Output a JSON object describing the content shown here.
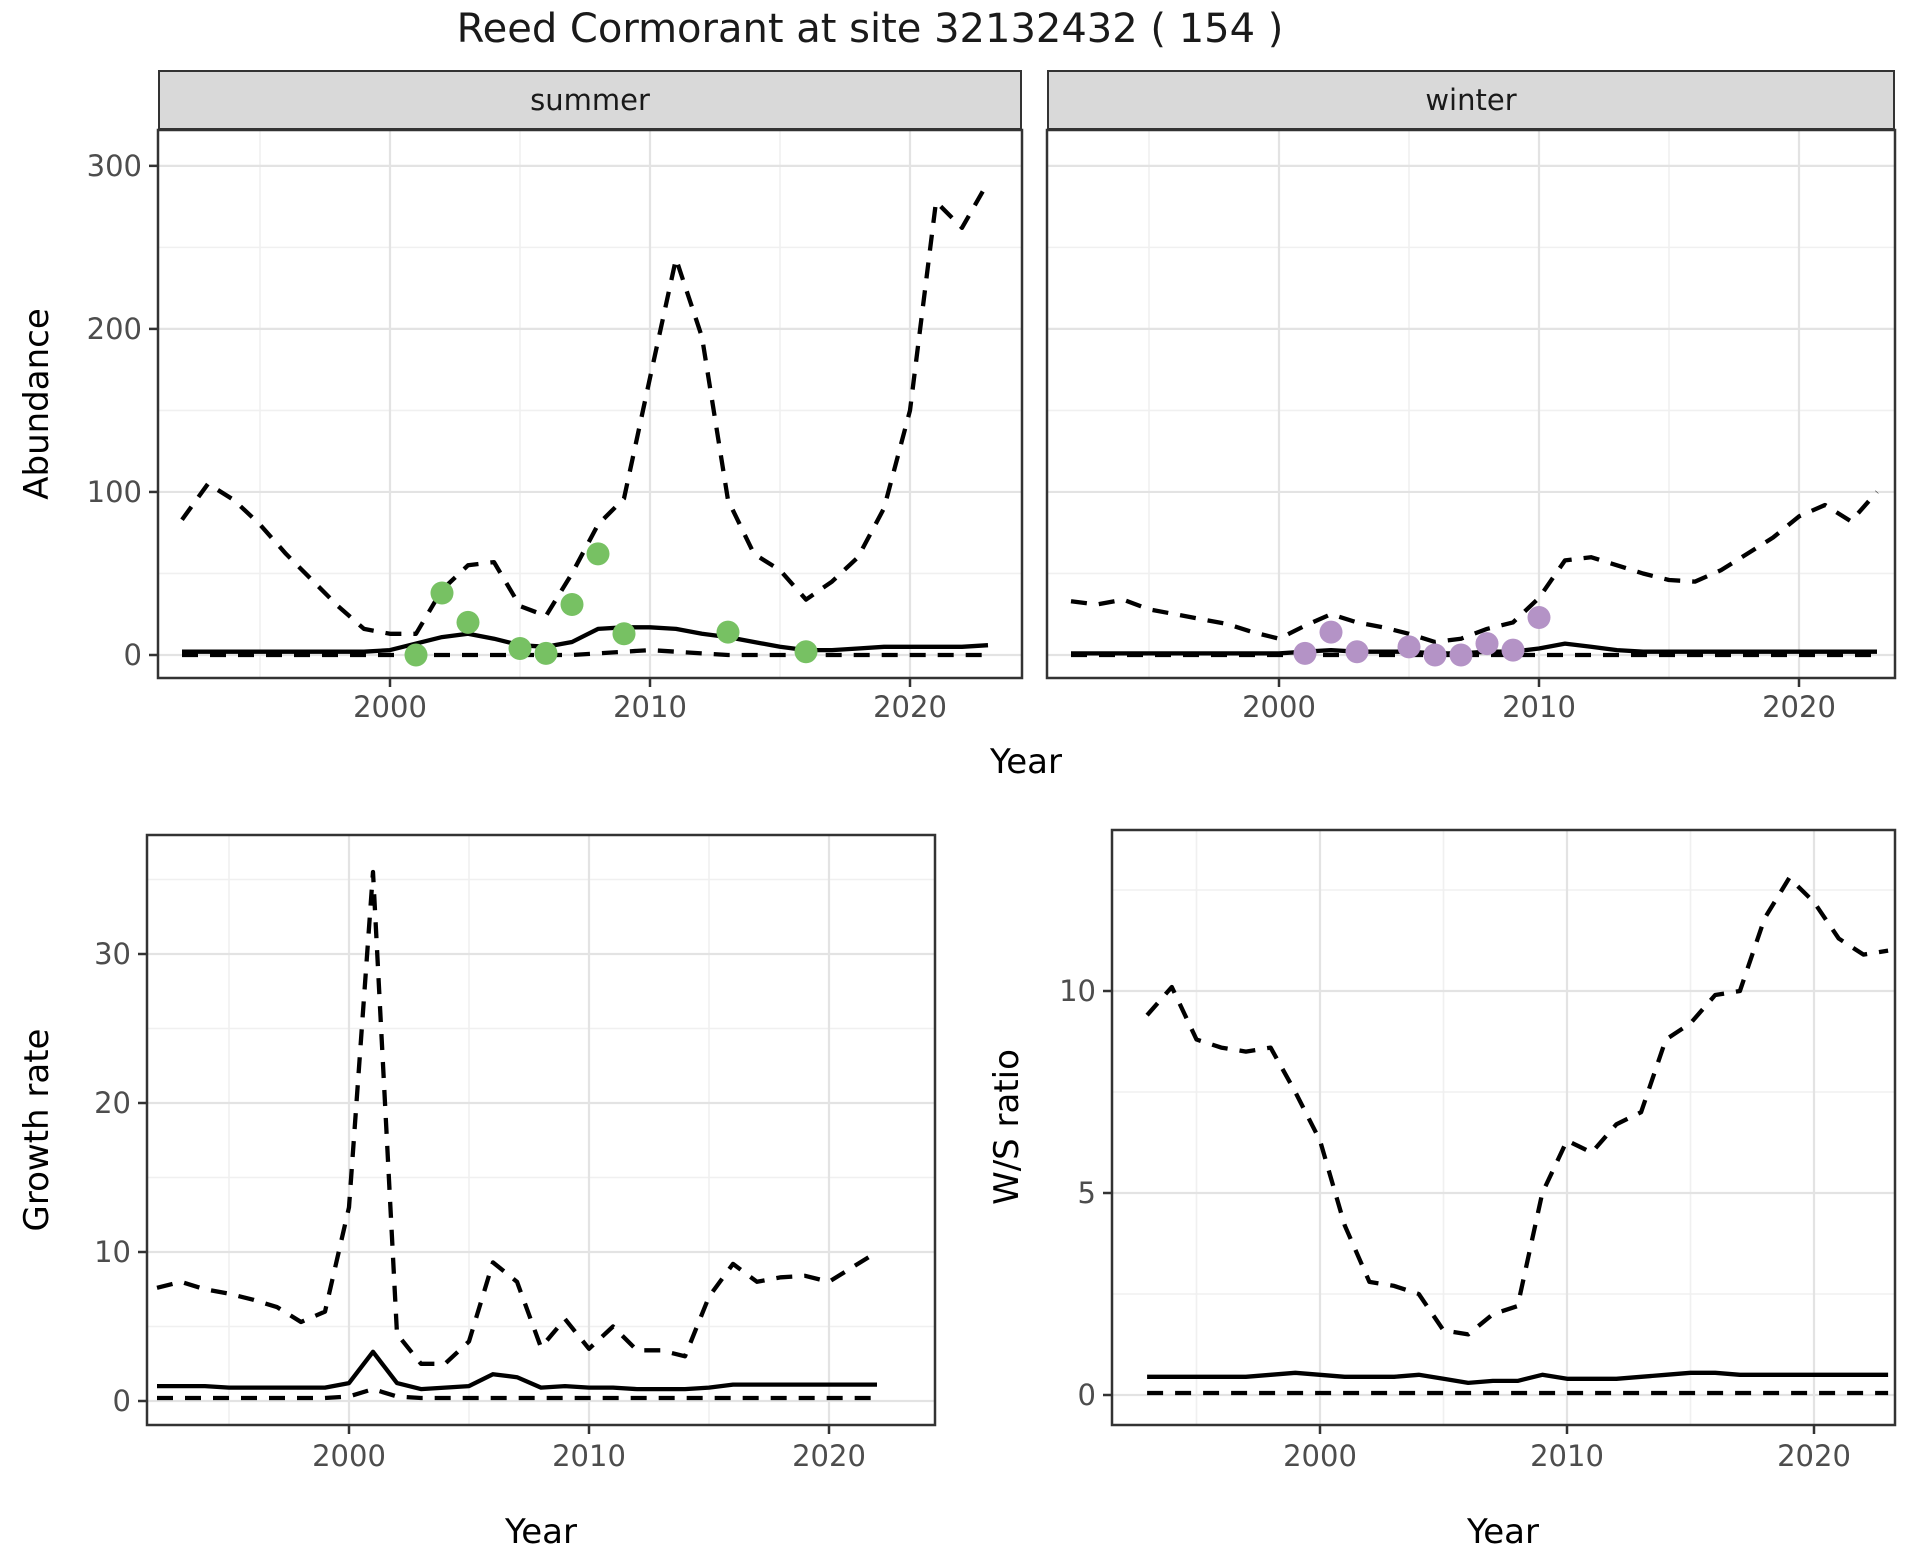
{
  "title": "Reed Cormorant at site 32132432 ( 154 )",
  "axes": {
    "year_label": "Year",
    "abundance_label": "Abundance",
    "growth_label": "Growth rate",
    "ws_label": "W/S ratio"
  },
  "colors": {
    "summer_point": "#77c163",
    "winter_point": "#b493c6",
    "line": "#000000",
    "grid_major": "#e3e3e3",
    "grid_minor": "#f0f0f0",
    "panel_border": "#333333",
    "strip_bg": "#d9d9d9",
    "tick_text": "#4d4d4d"
  },
  "chart_data": [
    {
      "type": "line",
      "facet": "summer",
      "xlabel": "Year",
      "ylabel": "Abundance",
      "legend_position": "none",
      "grid": true,
      "xlim": [
        1991.1,
        2024.3
      ],
      "ylim": [
        -14,
        322
      ],
      "xticks": [
        2000,
        2010,
        2020
      ],
      "xminor": [
        1995,
        2005,
        2015
      ],
      "yticks": [
        0,
        100,
        200,
        300
      ],
      "yminor": [
        50,
        150,
        250
      ],
      "x": [
        1992,
        1993,
        1994,
        1995,
        1996,
        1997,
        1998,
        1999,
        2000,
        2001,
        2002,
        2003,
        2004,
        2005,
        2006,
        2007,
        2008,
        2009,
        2010,
        2011,
        2012,
        2013,
        2014,
        2015,
        2016,
        2017,
        2018,
        2019,
        2020,
        2021,
        2022,
        2023
      ],
      "series": [
        {
          "name": "upper_ci",
          "style": "dashed",
          "values": [
            83,
            105,
            95,
            80,
            62,
            46,
            30,
            16,
            13,
            13,
            40,
            55,
            57,
            30,
            24,
            50,
            80,
            96,
            170,
            243,
            195,
            95,
            62,
            52,
            34,
            45,
            60,
            90,
            150,
            278,
            262,
            290
          ]
        },
        {
          "name": "median",
          "style": "solid",
          "values": [
            2,
            2,
            2,
            2,
            2,
            2,
            2,
            2,
            3,
            7,
            11,
            13,
            10,
            6,
            5,
            8,
            16,
            17,
            17,
            16,
            13,
            11,
            8,
            5,
            3,
            3,
            4,
            5,
            5,
            5,
            5,
            6
          ]
        },
        {
          "name": "lower_ci",
          "style": "dashed",
          "values": [
            0,
            0,
            0,
            0,
            0,
            0,
            0,
            0,
            0,
            0,
            0,
            0,
            0,
            0,
            0,
            0,
            1,
            2,
            3,
            2,
            1,
            0,
            0,
            0,
            0,
            0,
            0,
            0,
            0,
            0,
            0,
            0
          ]
        }
      ],
      "points": {
        "name": "summer observations",
        "color_key": "summer_point",
        "xy": [
          [
            2001,
            0
          ],
          [
            2002,
            38
          ],
          [
            2003,
            20
          ],
          [
            2005,
            4
          ],
          [
            2006,
            1
          ],
          [
            2007,
            31
          ],
          [
            2008,
            62
          ],
          [
            2009,
            13
          ],
          [
            2013,
            14
          ],
          [
            2016,
            2
          ]
        ]
      }
    },
    {
      "type": "line",
      "facet": "winter",
      "xlabel": "Year",
      "ylabel": "Abundance",
      "legend_position": "none",
      "grid": true,
      "xlim": [
        1991.1,
        2023.7
      ],
      "ylim": [
        -14,
        322
      ],
      "xticks": [
        2000,
        2010,
        2020
      ],
      "xminor": [
        1995,
        2005,
        2015
      ],
      "yticks": [
        0,
        100,
        200,
        300
      ],
      "yminor": [
        50,
        150,
        250
      ],
      "x": [
        1992,
        1993,
        1994,
        1995,
        1996,
        1997,
        1998,
        1999,
        2000,
        2001,
        2002,
        2003,
        2004,
        2005,
        2006,
        2007,
        2008,
        2009,
        2010,
        2011,
        2012,
        2013,
        2014,
        2015,
        2016,
        2017,
        2018,
        2019,
        2020,
        2021,
        2022,
        2023
      ],
      "series": [
        {
          "name": "upper_ci",
          "style": "dashed",
          "values": [
            33,
            31,
            34,
            28,
            25,
            22,
            19,
            14,
            10,
            18,
            25,
            20,
            17,
            13,
            8,
            10,
            16,
            20,
            35,
            58,
            60,
            55,
            50,
            46,
            45,
            52,
            62,
            72,
            85,
            92,
            82,
            100
          ]
        },
        {
          "name": "median",
          "style": "solid",
          "values": [
            1,
            1,
            1,
            1,
            1,
            1,
            1,
            1,
            1,
            2,
            3,
            2,
            2,
            2,
            1,
            1,
            2,
            2,
            4,
            7,
            5,
            3,
            2,
            2,
            2,
            2,
            2,
            2,
            2,
            2,
            2,
            2
          ]
        },
        {
          "name": "lower_ci",
          "style": "dashed",
          "values": [
            0,
            0,
            0,
            0,
            0,
            0,
            0,
            0,
            0,
            0,
            0,
            0,
            0,
            0,
            0,
            0,
            0,
            0,
            0,
            0,
            0,
            0,
            0,
            0,
            0,
            0,
            0,
            0,
            0,
            0,
            0,
            0
          ]
        }
      ],
      "points": {
        "name": "winter observations",
        "color_key": "winter_point",
        "xy": [
          [
            2001,
            1
          ],
          [
            2002,
            14
          ],
          [
            2003,
            2
          ],
          [
            2005,
            5
          ],
          [
            2006,
            0
          ],
          [
            2007,
            0
          ],
          [
            2008,
            7
          ],
          [
            2009,
            3
          ],
          [
            2010,
            23
          ]
        ]
      }
    },
    {
      "type": "line",
      "facet": "",
      "xlabel": "Year",
      "ylabel": "Growth rate",
      "legend_position": "none",
      "grid": true,
      "xlim": [
        1991.6,
        2024.4
      ],
      "ylim": [
        -1.6,
        38
      ],
      "xticks": [
        2000,
        2010,
        2020
      ],
      "xminor": [
        1995,
        2005,
        2015
      ],
      "yticks": [
        0,
        10,
        20,
        30
      ],
      "yminor": [
        5,
        15,
        25,
        35
      ],
      "x": [
        1992,
        1993,
        1994,
        1995,
        1996,
        1997,
        1998,
        1999,
        2000,
        2001,
        2002,
        2003,
        2004,
        2005,
        2006,
        2007,
        2008,
        2009,
        2010,
        2011,
        2012,
        2013,
        2014,
        2015,
        2016,
        2017,
        2018,
        2019,
        2020,
        2021,
        2022
      ],
      "series": [
        {
          "name": "upper_ci",
          "style": "dashed",
          "values": [
            7.6,
            8,
            7.5,
            7.2,
            6.8,
            6.3,
            5.3,
            6,
            13,
            35.5,
            4.5,
            2.5,
            2.5,
            4,
            9.3,
            8,
            3.6,
            5.5,
            3.5,
            5,
            3.4,
            3.4,
            3,
            7,
            9.2,
            8,
            8.3,
            8.4,
            8,
            9,
            10
          ]
        },
        {
          "name": "median",
          "style": "solid",
          "values": [
            1,
            1,
            1,
            0.9,
            0.9,
            0.9,
            0.9,
            0.9,
            1.2,
            3.3,
            1.2,
            0.8,
            0.9,
            1,
            1.8,
            1.6,
            0.9,
            1,
            0.9,
            0.9,
            0.8,
            0.8,
            0.8,
            0.9,
            1.1,
            1.1,
            1.1,
            1.1,
            1.1,
            1.1,
            1.1
          ]
        },
        {
          "name": "lower_ci",
          "style": "dashed",
          "values": [
            0.2,
            0.2,
            0.2,
            0.2,
            0.2,
            0.2,
            0.2,
            0.2,
            0.3,
            0.8,
            0.3,
            0.2,
            0.2,
            0.2,
            0.2,
            0.2,
            0.2,
            0.2,
            0.2,
            0.2,
            0.2,
            0.2,
            0.2,
            0.2,
            0.2,
            0.2,
            0.2,
            0.2,
            0.2,
            0.2,
            0.2
          ]
        }
      ],
      "points": {
        "name": "",
        "color_key": "summer_point",
        "xy": []
      }
    },
    {
      "type": "line",
      "facet": "",
      "xlabel": "Year",
      "ylabel": "W/S ratio",
      "legend_position": "none",
      "grid": true,
      "xlim": [
        1991.6,
        2023.3
      ],
      "ylim": [
        -0.9,
        14.0
      ],
      "xticks": [
        2000,
        2010,
        2020
      ],
      "xminor": [
        1995,
        2005,
        2015
      ],
      "yticks": [
        0,
        5,
        10
      ],
      "yminor": [
        2.5,
        7.5,
        12.5
      ],
      "x": [
        1993,
        1994,
        1995,
        1996,
        1997,
        1998,
        1999,
        2000,
        2001,
        2002,
        2003,
        2004,
        2005,
        2006,
        2007,
        2008,
        2009,
        2010,
        2011,
        2012,
        2013,
        2014,
        2015,
        2016,
        2017,
        2018,
        2019,
        2020,
        2021,
        2022,
        2023
      ],
      "series": [
        {
          "name": "upper_ci",
          "style": "dashed",
          "values": [
            9.4,
            10.1,
            8.8,
            8.6,
            8.5,
            8.6,
            7.5,
            6.3,
            4.2,
            2.8,
            2.7,
            2.5,
            1.6,
            1.5,
            2.0,
            2.2,
            5.0,
            6.3,
            6.0,
            6.7,
            7.0,
            8.8,
            9.2,
            9.9,
            10.0,
            11.8,
            12.8,
            12.2,
            11.3,
            10.9,
            11.0
          ]
        },
        {
          "name": "median",
          "style": "solid",
          "values": [
            0.45,
            0.45,
            0.45,
            0.45,
            0.45,
            0.5,
            0.55,
            0.5,
            0.45,
            0.45,
            0.45,
            0.5,
            0.4,
            0.3,
            0.35,
            0.35,
            0.5,
            0.4,
            0.4,
            0.4,
            0.45,
            0.5,
            0.55,
            0.55,
            0.5,
            0.5,
            0.5,
            0.5,
            0.5,
            0.5,
            0.5
          ]
        },
        {
          "name": "lower_ci",
          "style": "dashed",
          "values": [
            0.05,
            0.05,
            0.05,
            0.05,
            0.05,
            0.05,
            0.05,
            0.05,
            0.05,
            0.05,
            0.05,
            0.05,
            0.05,
            0.05,
            0.05,
            0.05,
            0.05,
            0.05,
            0.05,
            0.05,
            0.05,
            0.05,
            0.05,
            0.05,
            0.05,
            0.05,
            0.05,
            0.05,
            0.05,
            0.05,
            0.05
          ]
        }
      ],
      "points": {
        "name": "",
        "color_key": "winter_point",
        "xy": []
      }
    }
  ]
}
